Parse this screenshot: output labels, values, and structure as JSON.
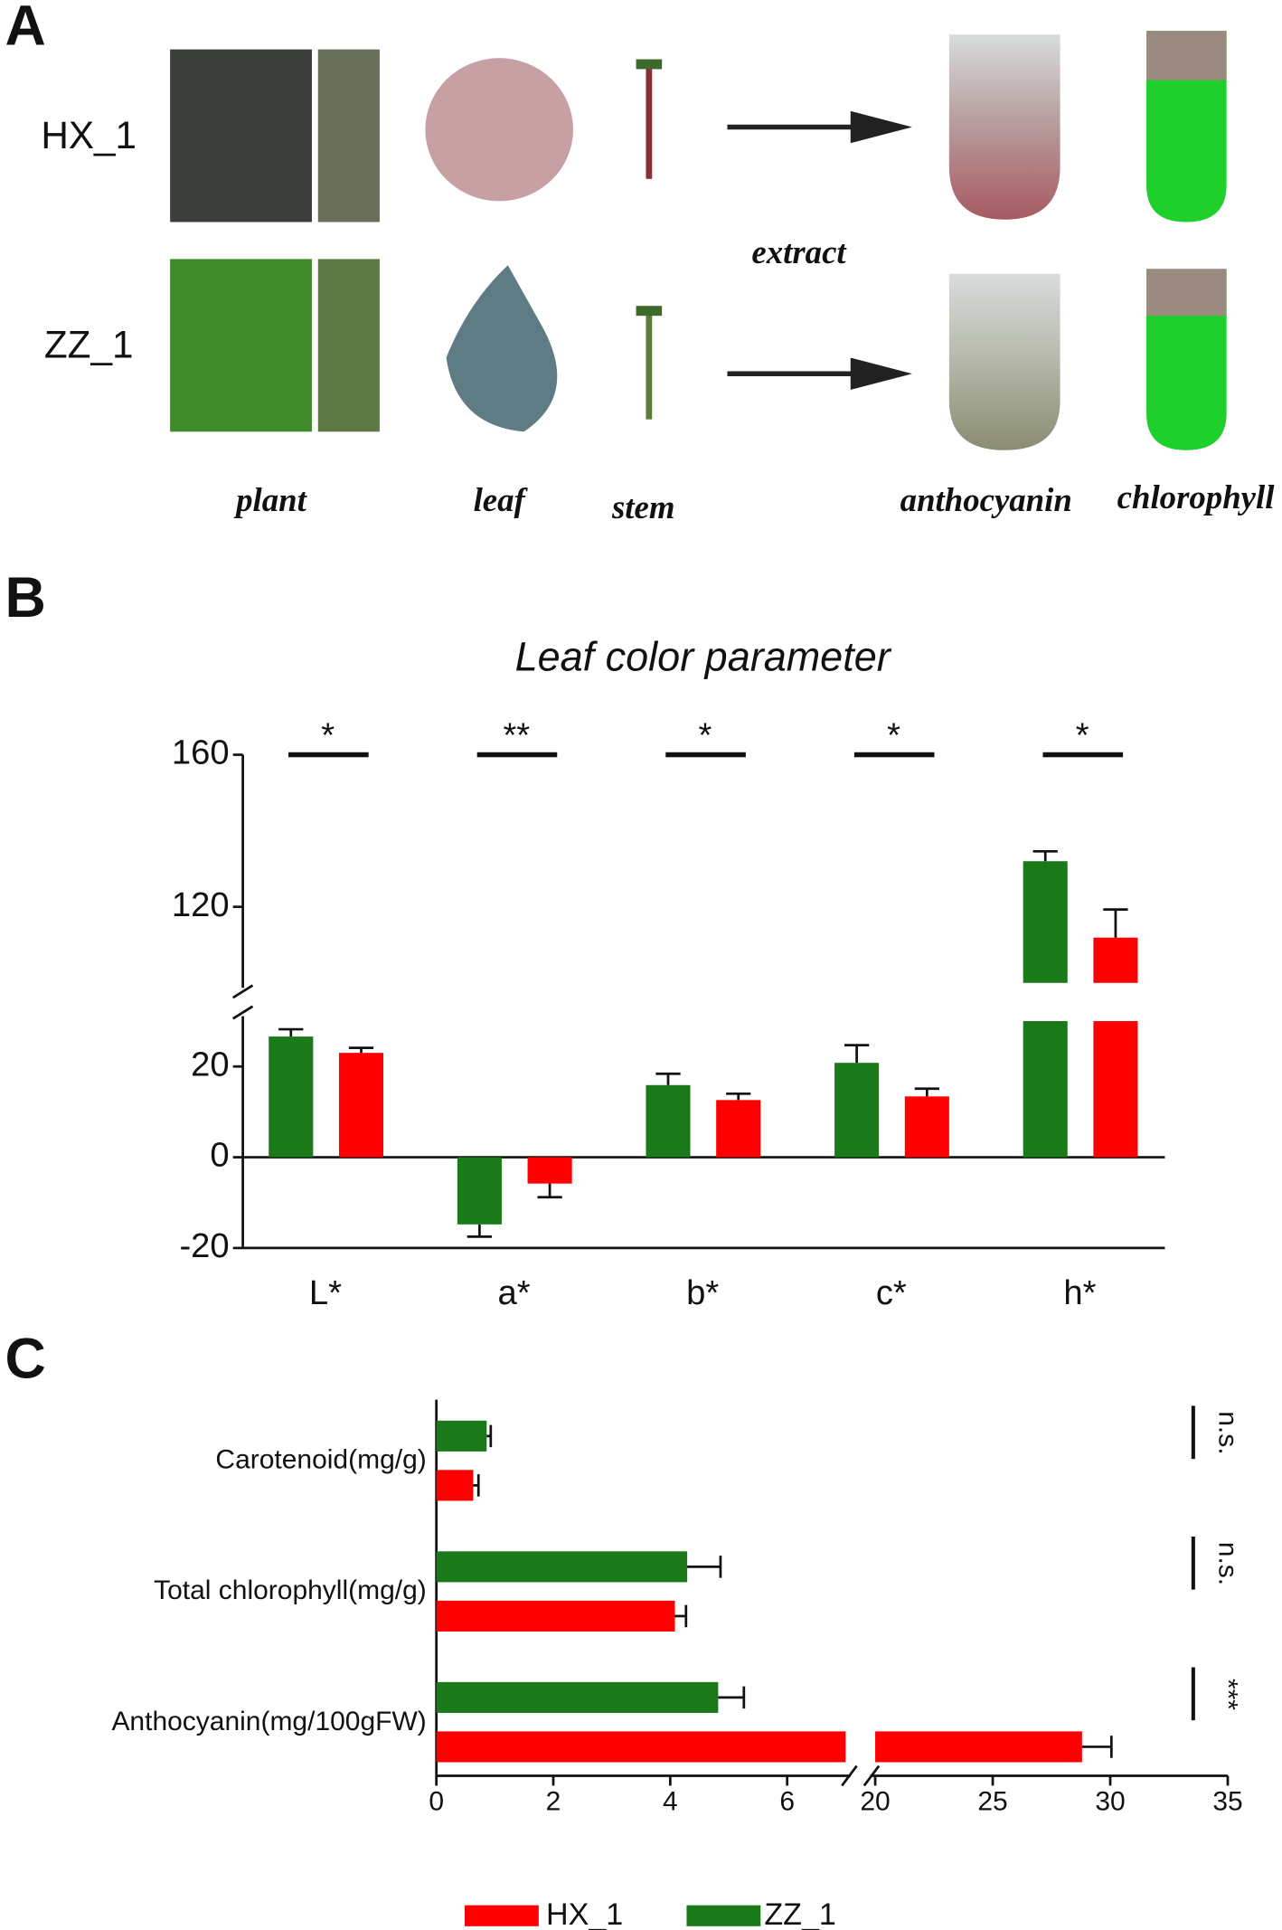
{
  "panel_labels": [
    "A",
    "B",
    "C"
  ],
  "photo_panel": {
    "samples": [
      "HX_1",
      "ZZ_1"
    ],
    "columns": [
      "plant",
      "leaf",
      "stem",
      "anthocyanin",
      "chlorophyll"
    ],
    "arrow_label": "extract"
  },
  "chart_data": [
    {
      "type": "bar",
      "title": "Leaf color parameter",
      "categories": [
        "L*",
        "a*",
        "b*",
        "c*",
        "h*"
      ],
      "series": [
        {
          "name": "ZZ_1",
          "color": "#1a7a1a",
          "values": [
            26.6,
            -14.8,
            15.9,
            20.8,
            132.0
          ],
          "errors": [
            1.6,
            2.7,
            2.5,
            3.9,
            2.6
          ]
        },
        {
          "name": "HX_1",
          "color": "#ff0000",
          "values": [
            23.0,
            -5.8,
            12.6,
            13.4,
            111.9
          ],
          "errors": [
            1.1,
            3.0,
            1.4,
            1.7,
            7.4
          ]
        }
      ],
      "significance": [
        "*",
        "**",
        "*",
        "*",
        "*"
      ],
      "ylim": [
        -20,
        160
      ],
      "yticks": [
        -20,
        0,
        20,
        120,
        160
      ],
      "ybreak": [
        30,
        100
      ]
    },
    {
      "type": "hbar",
      "categories": [
        "Carotenoid(mg/g)",
        "Total chlorophyll(mg/g)",
        "Anthocyanin(mg/100gFW)"
      ],
      "series": [
        {
          "name": "ZZ_1",
          "color": "#1a7a1a",
          "values": [
            0.86,
            4.29,
            4.82
          ],
          "errors": [
            0.07,
            0.57,
            0.44
          ]
        },
        {
          "name": "HX_1",
          "color": "#ff0000",
          "values": [
            0.63,
            4.08,
            28.8
          ],
          "errors": [
            0.09,
            0.19,
            1.25
          ]
        }
      ],
      "significance": [
        "n.s.",
        "n.s.",
        "***"
      ],
      "xlim": [
        0,
        35
      ],
      "xticks": [
        0,
        2,
        4,
        6,
        20,
        25,
        30,
        35
      ],
      "xbreak": [
        7,
        20
      ]
    }
  ]
}
